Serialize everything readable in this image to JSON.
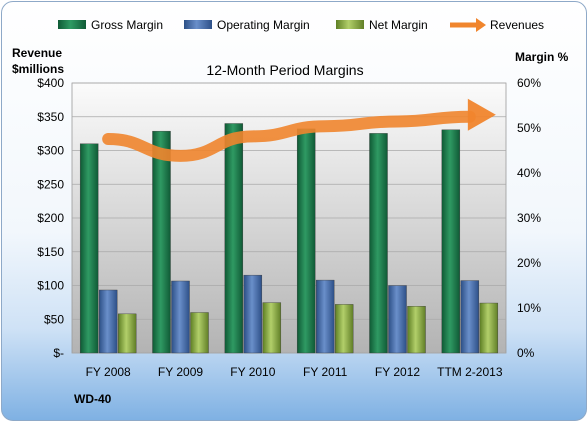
{
  "chart_data": {
    "type": "bar",
    "title": "12-Month Period Margins",
    "company": "WD-40",
    "categories": [
      "FY 2008",
      "FY 2009",
      "FY 2010",
      "FY 2011",
      "FY 2012",
      "TTM 2-2013"
    ],
    "series": [
      {
        "name": "Gross Margin",
        "axis": "right",
        "color": "#1f7a4d",
        "values": [
          46.5,
          49.3,
          51.0,
          49.8,
          48.8,
          49.6
        ]
      },
      {
        "name": "Operating Margin",
        "axis": "right",
        "color": "#4a6ea9",
        "values": [
          14.0,
          16.0,
          17.3,
          16.2,
          15.0,
          16.1
        ]
      },
      {
        "name": "Net Margin",
        "axis": "right",
        "color": "#8fb04a",
        "values": [
          8.7,
          9.0,
          11.2,
          10.8,
          10.4,
          11.1
        ]
      },
      {
        "name": "Revenues",
        "axis": "left",
        "type": "line-arrow",
        "color": "#f0852d",
        "values": [
          317,
          292,
          321,
          336,
          343,
          350
        ]
      }
    ],
    "left_axis": {
      "title_line1": "Revenue",
      "title_line2": "$millions",
      "min": 0,
      "max": 400,
      "step": 50,
      "tick_labels": [
        "$-",
        "$50",
        "$100",
        "$150",
        "$200",
        "$250",
        "$300",
        "$350",
        "$400"
      ]
    },
    "right_axis": {
      "title": "Margin %",
      "min": 0,
      "max": 60,
      "step": 10,
      "tick_labels": [
        "0%",
        "10%",
        "20%",
        "30%",
        "40%",
        "50%",
        "60%"
      ]
    },
    "legend_position": "top",
    "grid": true
  }
}
